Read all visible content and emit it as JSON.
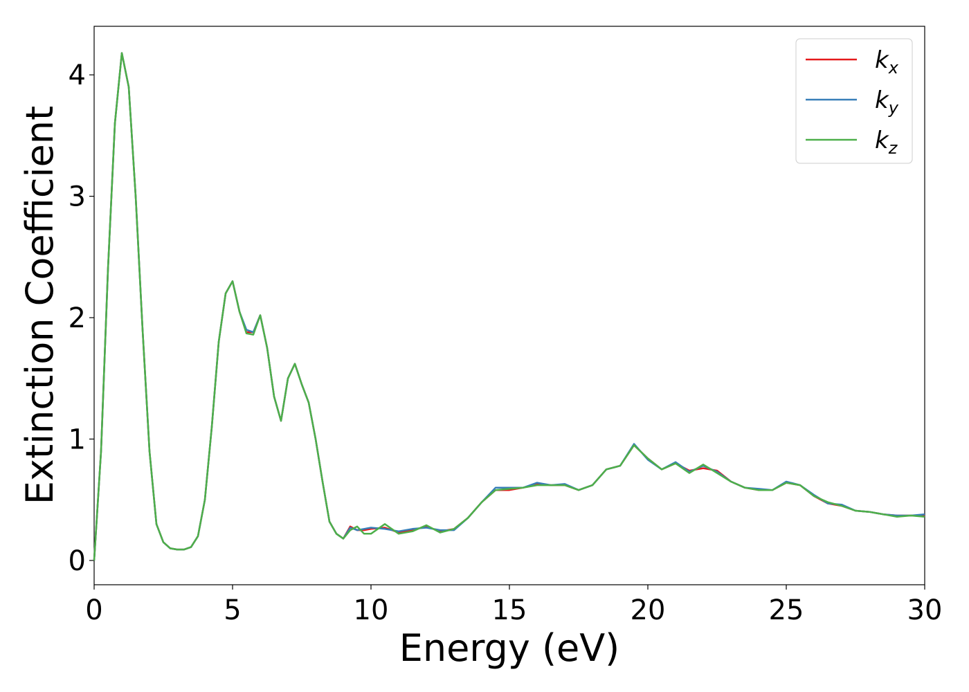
{
  "chart_data": {
    "type": "line",
    "xlabel": "Energy (eV)",
    "ylabel": "Extinction Coefficient",
    "x": [
      0,
      0.25,
      0.5,
      0.75,
      1.0,
      1.25,
      1.5,
      1.75,
      2.0,
      2.25,
      2.5,
      2.75,
      3.0,
      3.25,
      3.5,
      3.75,
      4.0,
      4.25,
      4.5,
      4.75,
      5.0,
      5.25,
      5.5,
      5.75,
      6.0,
      6.25,
      6.5,
      6.75,
      7.0,
      7.25,
      7.5,
      7.75,
      8.0,
      8.25,
      8.5,
      8.75,
      9.0,
      9.25,
      9.5,
      9.75,
      10,
      10.5,
      11,
      11.5,
      12,
      12.5,
      13,
      13.5,
      14,
      14.5,
      15,
      15.5,
      16,
      16.5,
      17,
      17.5,
      18,
      18.5,
      19,
      19.5,
      20,
      20.5,
      21,
      21.5,
      22,
      22.5,
      23,
      23.5,
      24,
      24.5,
      25,
      25.5,
      26,
      26.5,
      27,
      27.5,
      28,
      28.5,
      29,
      29.5,
      30
    ],
    "series": [
      {
        "name": "kx",
        "color": "#e41a1c",
        "values": [
          0.0,
          0.9,
          2.4,
          3.6,
          4.18,
          3.9,
          3.0,
          1.9,
          0.9,
          0.3,
          0.15,
          0.1,
          0.09,
          0.09,
          0.11,
          0.2,
          0.5,
          1.1,
          1.8,
          2.2,
          2.3,
          2.05,
          1.88,
          1.88,
          2.02,
          1.75,
          1.35,
          1.15,
          1.5,
          1.62,
          1.45,
          1.3,
          1.0,
          0.65,
          0.32,
          0.22,
          0.18,
          0.28,
          0.25,
          0.25,
          0.26,
          0.27,
          0.23,
          0.25,
          0.28,
          0.24,
          0.26,
          0.35,
          0.48,
          0.58,
          0.58,
          0.6,
          0.63,
          0.62,
          0.62,
          0.58,
          0.62,
          0.75,
          0.78,
          0.95,
          0.84,
          0.75,
          0.8,
          0.74,
          0.76,
          0.74,
          0.65,
          0.6,
          0.58,
          0.58,
          0.64,
          0.62,
          0.53,
          0.47,
          0.45,
          0.41,
          0.4,
          0.38,
          0.37,
          0.37,
          0.37
        ]
      },
      {
        "name": "ky",
        "color": "#377eb8",
        "values": [
          0.0,
          0.9,
          2.4,
          3.6,
          4.18,
          3.9,
          3.0,
          1.9,
          0.9,
          0.3,
          0.15,
          0.1,
          0.09,
          0.09,
          0.11,
          0.2,
          0.5,
          1.1,
          1.8,
          2.2,
          2.3,
          2.05,
          1.9,
          1.88,
          2.02,
          1.75,
          1.35,
          1.15,
          1.5,
          1.62,
          1.45,
          1.3,
          1.0,
          0.65,
          0.32,
          0.22,
          0.18,
          0.27,
          0.25,
          0.26,
          0.27,
          0.26,
          0.24,
          0.26,
          0.27,
          0.25,
          0.25,
          0.35,
          0.48,
          0.6,
          0.6,
          0.6,
          0.64,
          0.62,
          0.63,
          0.58,
          0.62,
          0.75,
          0.78,
          0.96,
          0.83,
          0.75,
          0.81,
          0.73,
          0.78,
          0.73,
          0.65,
          0.6,
          0.59,
          0.58,
          0.65,
          0.62,
          0.54,
          0.47,
          0.46,
          0.41,
          0.4,
          0.38,
          0.37,
          0.37,
          0.38
        ]
      },
      {
        "name": "kz",
        "color": "#4daf4a",
        "values": [
          0.0,
          0.9,
          2.4,
          3.6,
          4.18,
          3.9,
          3.0,
          1.9,
          0.9,
          0.3,
          0.15,
          0.1,
          0.09,
          0.09,
          0.11,
          0.2,
          0.5,
          1.1,
          1.8,
          2.2,
          2.3,
          2.05,
          1.87,
          1.86,
          2.02,
          1.75,
          1.35,
          1.15,
          1.5,
          1.62,
          1.45,
          1.3,
          1.0,
          0.65,
          0.32,
          0.22,
          0.18,
          0.25,
          0.28,
          0.22,
          0.22,
          0.3,
          0.22,
          0.24,
          0.29,
          0.23,
          0.26,
          0.35,
          0.48,
          0.58,
          0.59,
          0.6,
          0.62,
          0.62,
          0.62,
          0.58,
          0.62,
          0.75,
          0.78,
          0.95,
          0.84,
          0.75,
          0.8,
          0.72,
          0.79,
          0.72,
          0.65,
          0.6,
          0.58,
          0.58,
          0.64,
          0.62,
          0.53,
          0.48,
          0.45,
          0.41,
          0.4,
          0.38,
          0.36,
          0.37,
          0.36
        ]
      }
    ],
    "xlim": [
      0,
      30
    ],
    "xticks": [
      0,
      5,
      10,
      15,
      20,
      25,
      30
    ],
    "ylim": [
      -0.2,
      4.4
    ],
    "yticks": [
      0,
      1,
      2,
      3,
      4
    ],
    "grid": false,
    "legend": "upper right"
  }
}
